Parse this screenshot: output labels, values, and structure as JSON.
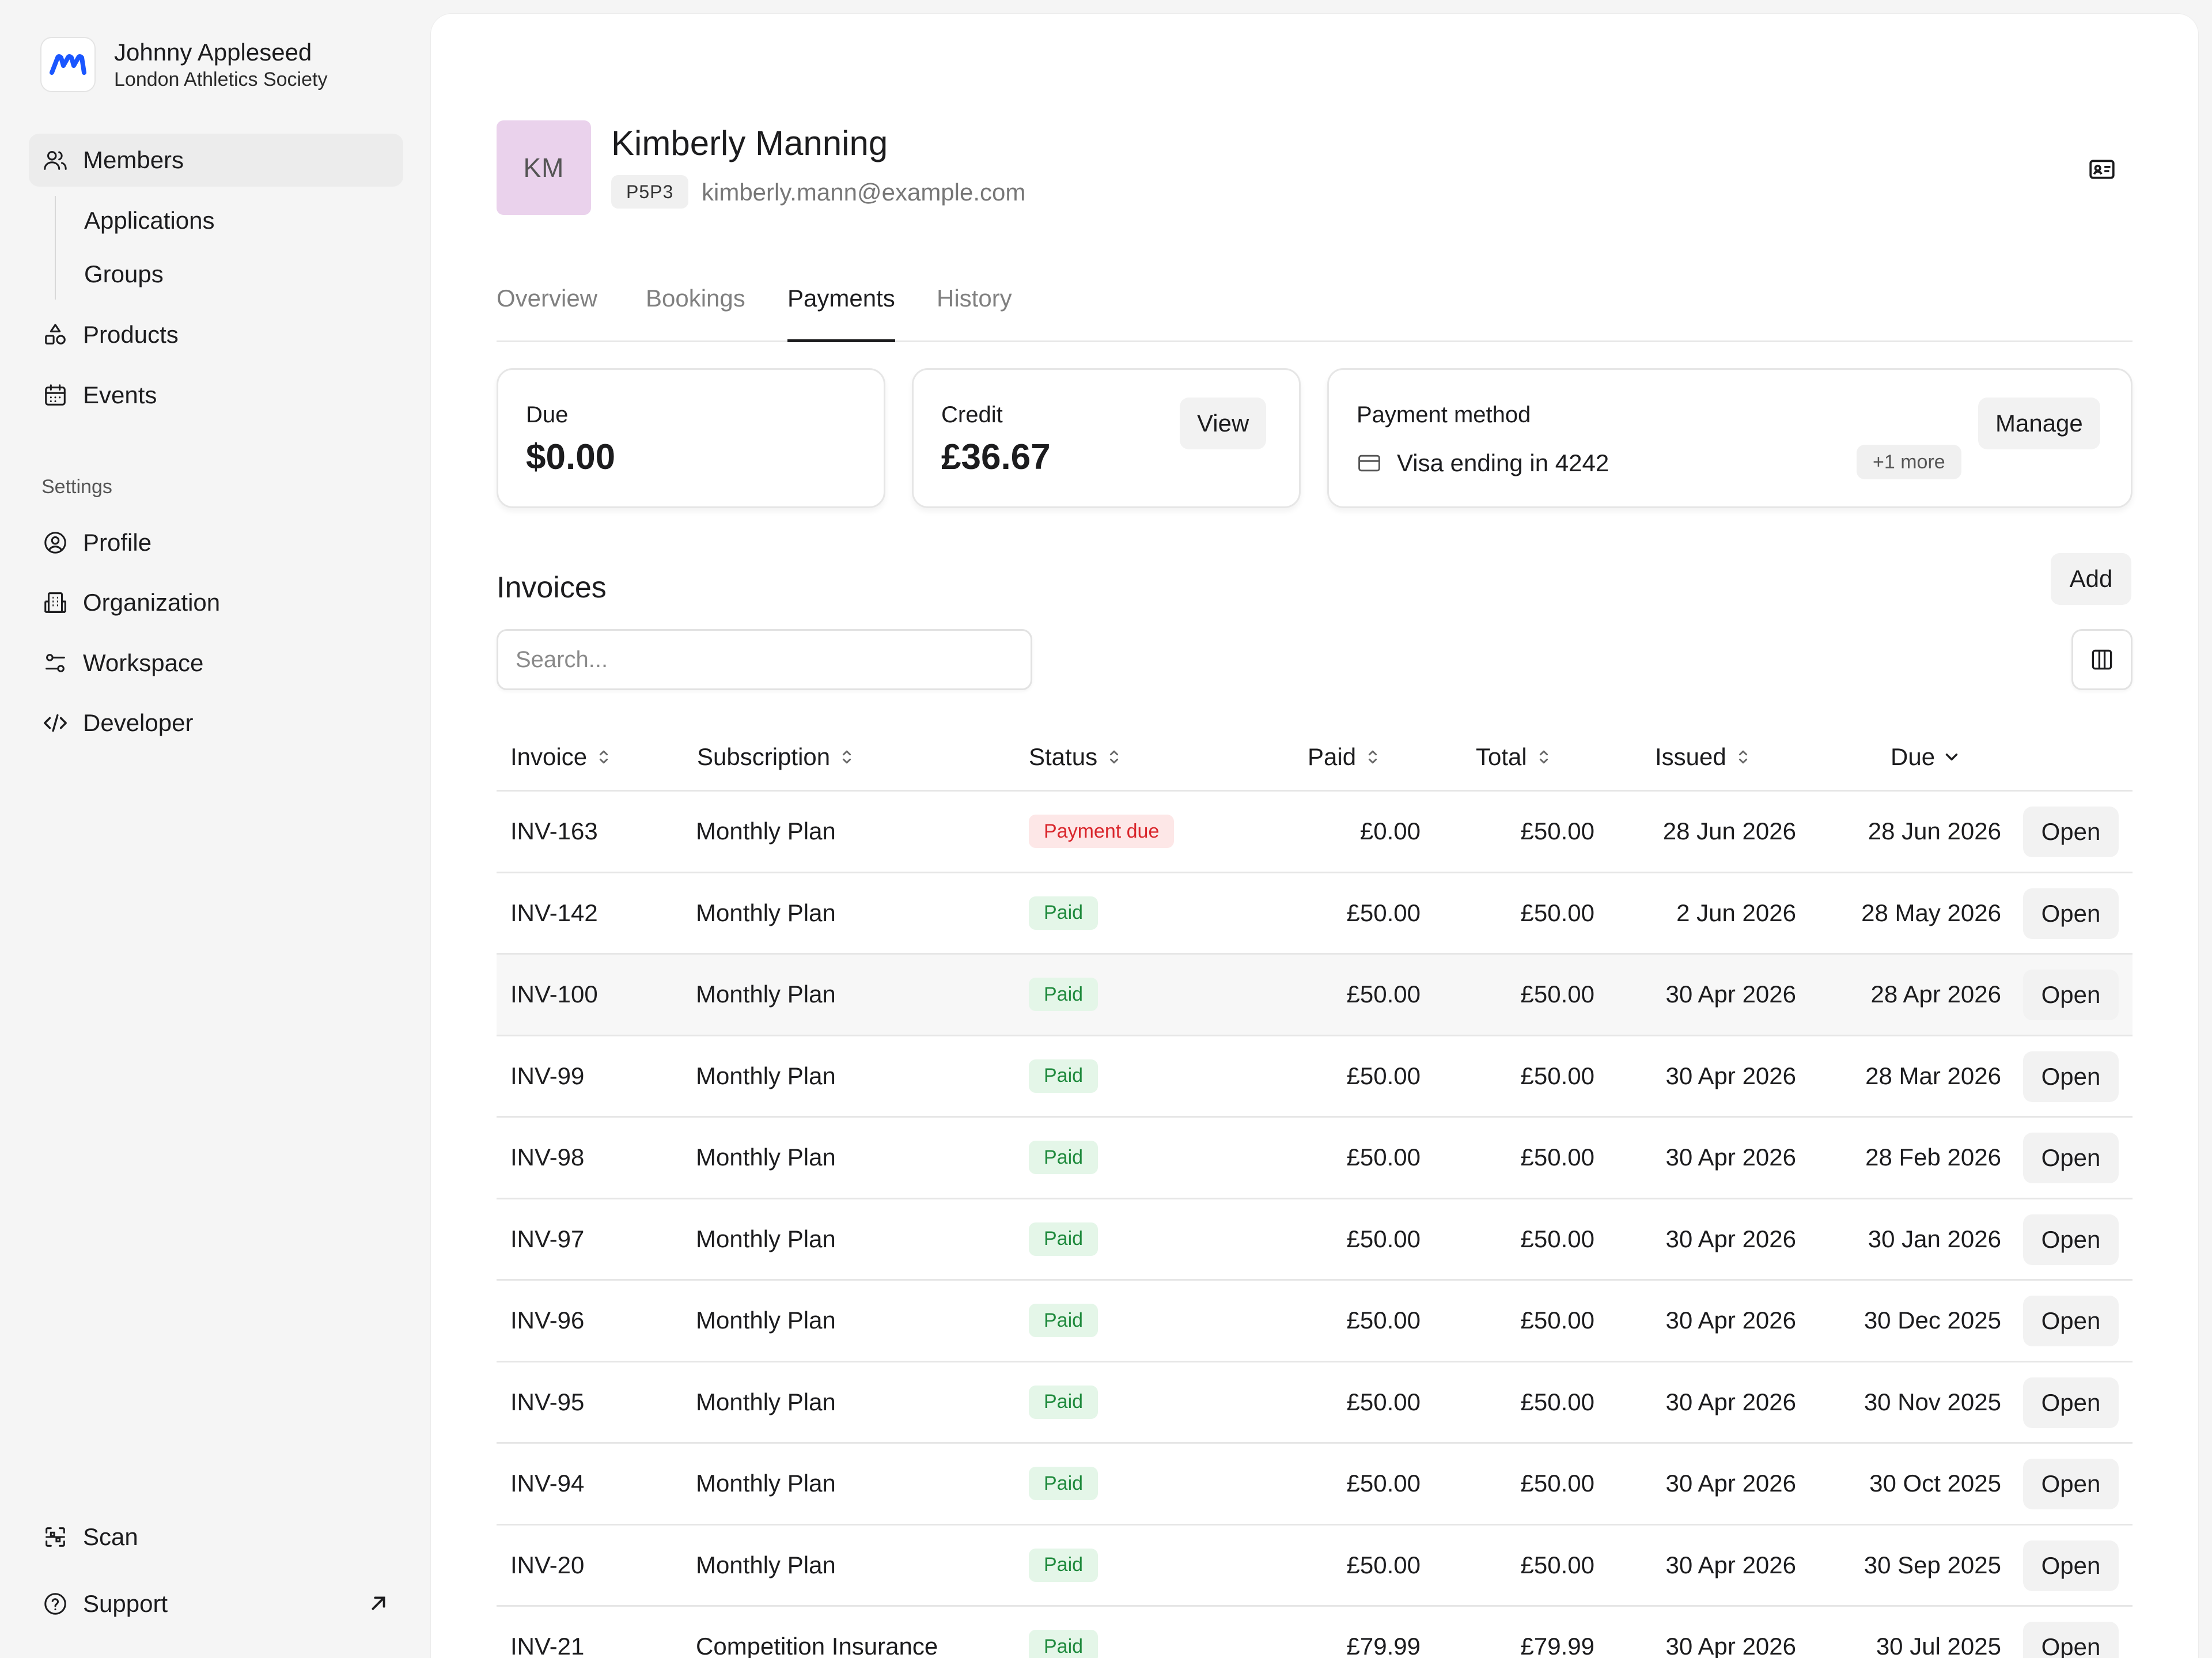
{
  "org": {
    "user_name": "Johnny Appleseed",
    "org_name": "London Athletics Society",
    "logo_icon": "brand-logo-icon",
    "accent": "#1a56ff"
  },
  "sidebar": {
    "members": "Members",
    "applications": "Applications",
    "groups": "Groups",
    "products": "Products",
    "events": "Events",
    "settings_label": "Settings",
    "profile": "Profile",
    "organization": "Organization",
    "workspace": "Workspace",
    "developer": "Developer",
    "scan": "Scan",
    "support": "Support"
  },
  "member": {
    "initials": "KM",
    "name": "Kimberly Manning",
    "code": "P5P3",
    "email": "kimberly.mann@example.com",
    "avatar_color": "#ead2ec"
  },
  "tabs": {
    "overview": "Overview",
    "bookings": "Bookings",
    "payments": "Payments",
    "history": "History",
    "active": "Payments"
  },
  "stats": {
    "due_label": "Due",
    "due_value": "$0.00",
    "credit_label": "Credit",
    "credit_value": "£36.67",
    "view_label": "View",
    "pm_label": "Payment method",
    "pm_value": "Visa ending in 4242",
    "pm_more": "+1 more",
    "manage_label": "Manage"
  },
  "invoices": {
    "title": "Invoices",
    "add_label": "Add",
    "search_placeholder": "Search...",
    "columns": {
      "invoice": "Invoice",
      "subscription": "Subscription",
      "status": "Status",
      "paid": "Paid",
      "total": "Total",
      "issued": "Issued",
      "due": "Due"
    },
    "open_label": "Open",
    "status_colors": {
      "paid_bg": "#e4f6e8",
      "paid_fg": "#1f8a3d",
      "due_bg": "#fde7e7",
      "due_fg": "#d9262c"
    },
    "rows": [
      {
        "invoice": "INV-163",
        "subscription": "Monthly Plan",
        "status": "Payment due",
        "status_type": "due",
        "paid": "£0.00",
        "total": "£50.00",
        "issued": "28 Jun 2026",
        "due": "28 Jun 2026"
      },
      {
        "invoice": "INV-142",
        "subscription": "Monthly Plan",
        "status": "Paid",
        "status_type": "paid",
        "paid": "£50.00",
        "total": "£50.00",
        "issued": "2 Jun 2026",
        "due": "28 May 2026"
      },
      {
        "invoice": "INV-100",
        "subscription": "Monthly Plan",
        "status": "Paid",
        "status_type": "paid",
        "paid": "£50.00",
        "total": "£50.00",
        "issued": "30 Apr 2026",
        "due": "28 Apr 2026",
        "highlight": true
      },
      {
        "invoice": "INV-99",
        "subscription": "Monthly Plan",
        "status": "Paid",
        "status_type": "paid",
        "paid": "£50.00",
        "total": "£50.00",
        "issued": "30 Apr 2026",
        "due": "28 Mar 2026"
      },
      {
        "invoice": "INV-98",
        "subscription": "Monthly Plan",
        "status": "Paid",
        "status_type": "paid",
        "paid": "£50.00",
        "total": "£50.00",
        "issued": "30 Apr 2026",
        "due": "28 Feb 2026"
      },
      {
        "invoice": "INV-97",
        "subscription": "Monthly Plan",
        "status": "Paid",
        "status_type": "paid",
        "paid": "£50.00",
        "total": "£50.00",
        "issued": "30 Apr 2026",
        "due": "30 Jan 2026"
      },
      {
        "invoice": "INV-96",
        "subscription": "Monthly Plan",
        "status": "Paid",
        "status_type": "paid",
        "paid": "£50.00",
        "total": "£50.00",
        "issued": "30 Apr 2026",
        "due": "30 Dec 2025"
      },
      {
        "invoice": "INV-95",
        "subscription": "Monthly Plan",
        "status": "Paid",
        "status_type": "paid",
        "paid": "£50.00",
        "total": "£50.00",
        "issued": "30 Apr 2026",
        "due": "30 Nov 2025"
      },
      {
        "invoice": "INV-94",
        "subscription": "Monthly Plan",
        "status": "Paid",
        "status_type": "paid",
        "paid": "£50.00",
        "total": "£50.00",
        "issued": "30 Apr 2026",
        "due": "30 Oct 2025"
      },
      {
        "invoice": "INV-20",
        "subscription": "Monthly Plan",
        "status": "Paid",
        "status_type": "paid",
        "paid": "£50.00",
        "total": "£50.00",
        "issued": "30 Apr 2026",
        "due": "30 Sep 2025"
      },
      {
        "invoice": "INV-21",
        "subscription": "Competition Insurance",
        "status": "Paid",
        "status_type": "paid",
        "paid": "£79.99",
        "total": "£79.99",
        "issued": "30 Apr 2026",
        "due": "30 Jul 2025"
      }
    ]
  }
}
